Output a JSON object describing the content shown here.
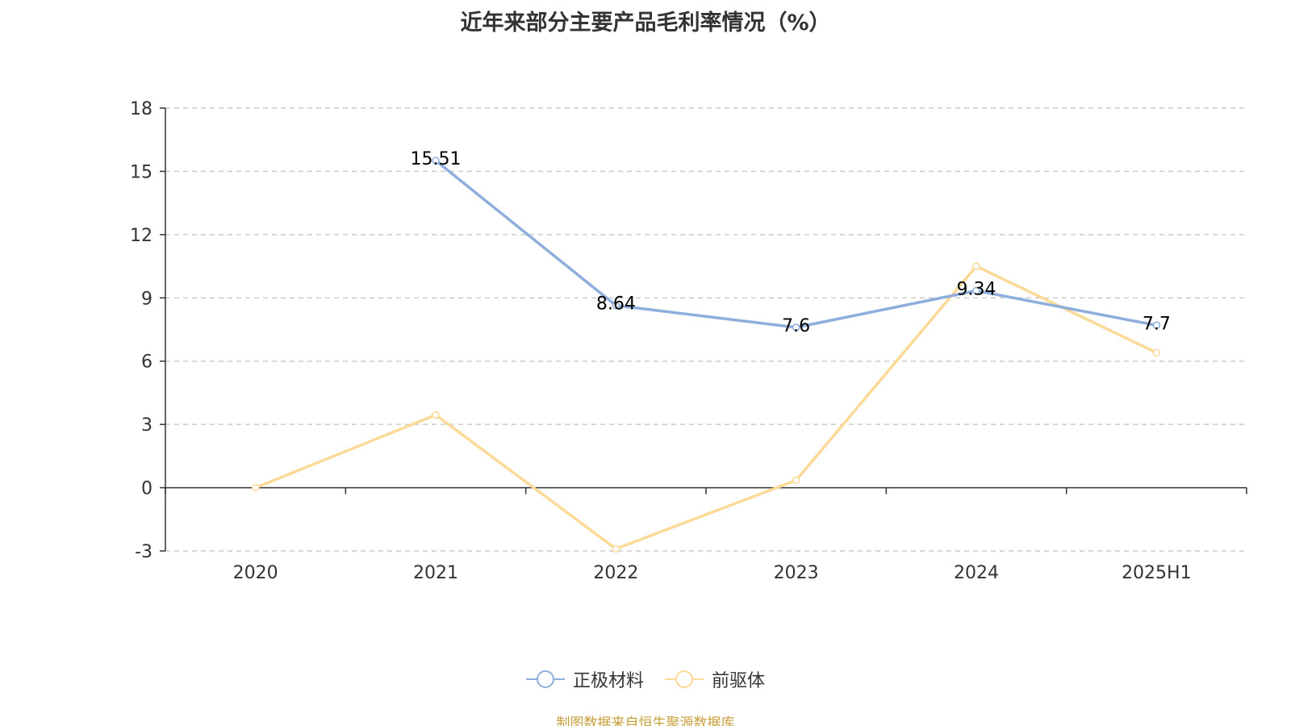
{
  "title": "近年来部分主要产品毛利率情况（%）",
  "source_note": "制图数据来自恒生聚源数据库",
  "chart_data": {
    "type": "line",
    "title": "近年来部分主要产品毛利率情况（%）",
    "xlabel": "",
    "ylabel": "",
    "categories": [
      "2020",
      "2021",
      "2022",
      "2023",
      "2024",
      "2025H1"
    ],
    "ylim": [
      -3,
      18
    ],
    "yticks": [
      -3,
      0,
      3,
      6,
      9,
      12,
      15,
      18
    ],
    "grid": true,
    "legend_position": "bottom",
    "series": [
      {
        "name": "正极材料",
        "color": "#8eaedb",
        "values": [
          null,
          15.51,
          8.64,
          7.6,
          9.34,
          7.7
        ],
        "data_labels": [
          "",
          "15.51",
          "8.64",
          "7.6",
          "9.34",
          "7.7"
        ]
      },
      {
        "name": "前驱体",
        "color": "#fcd997",
        "values": [
          0,
          3.45,
          -2.9,
          0.35,
          10.5,
          6.4
        ],
        "data_labels": [
          "",
          "",
          "",
          "",
          "",
          ""
        ]
      }
    ]
  }
}
